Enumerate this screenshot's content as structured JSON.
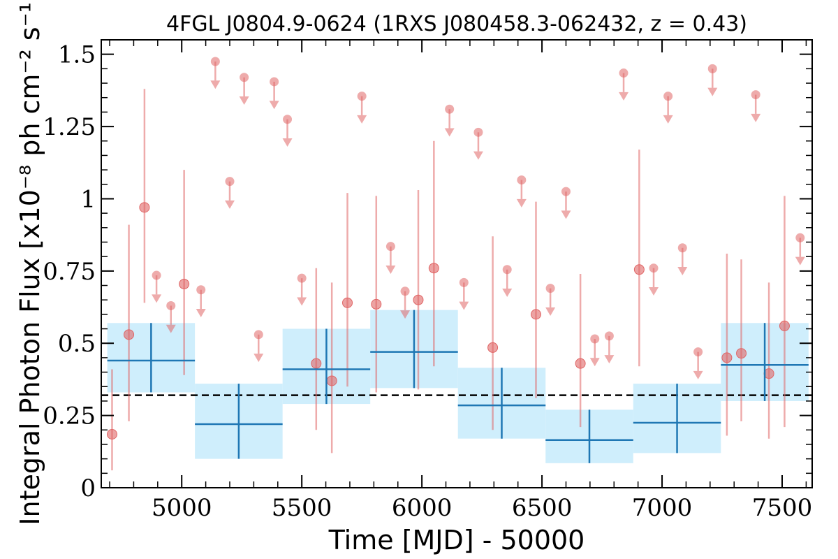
{
  "chart_data": {
    "type": "scatter",
    "title": "4FGL J0804.9-0624 (1RXS J080458.3-062432, z = 0.43)",
    "xlabel": "Time [MJD] - 50000",
    "ylabel": "Integral Photon Flux [x10⁻⁸ ph cm⁻² s⁻¹]",
    "xlim": [
      4665,
      7625
    ],
    "ylim": [
      0,
      1.55
    ],
    "xticks": [
      5000,
      5500,
      6000,
      6500,
      7000,
      7500
    ],
    "xtick_labels": [
      "5000",
      "5500",
      "6000",
      "6500",
      "7000",
      "7500"
    ],
    "yticks": [
      0,
      0.25,
      0.5,
      0.75,
      1,
      1.25,
      1.5
    ],
    "ytick_labels": [
      "0",
      "0.25",
      "0.5",
      "0.75",
      "1",
      "1.25",
      "1.5"
    ],
    "grid": false,
    "average_flux": 0.32,
    "colors": {
      "detections": "#e06666",
      "upper_limits": "#e06666",
      "yearly_bins": "#1f77b4",
      "yearly_band": "#cfeefc",
      "average_line": "#000000"
    },
    "detections": [
      {
        "x": 4710,
        "y": 0.185,
        "lo": 0.06,
        "hi": 0.41
      },
      {
        "x": 4780,
        "y": 0.53,
        "lo": 0.23,
        "hi": 0.91
      },
      {
        "x": 4845,
        "y": 0.97,
        "lo": 0.64,
        "hi": 1.38
      },
      {
        "x": 5010,
        "y": 0.705,
        "lo": 0.39,
        "hi": 1.1
      },
      {
        "x": 5560,
        "y": 0.43,
        "lo": 0.2,
        "hi": 0.76
      },
      {
        "x": 5625,
        "y": 0.37,
        "lo": 0.12,
        "hi": 0.71
      },
      {
        "x": 5690,
        "y": 0.64,
        "lo": 0.35,
        "hi": 1.02
      },
      {
        "x": 5810,
        "y": 0.635,
        "lo": 0.33,
        "hi": 1.01
      },
      {
        "x": 5985,
        "y": 0.65,
        "lo": 0.34,
        "hi": 1.03
      },
      {
        "x": 6050,
        "y": 0.76,
        "lo": 0.42,
        "hi": 1.2
      },
      {
        "x": 6295,
        "y": 0.485,
        "lo": 0.2,
        "hi": 0.87
      },
      {
        "x": 6475,
        "y": 0.6,
        "lo": 0.31,
        "hi": 0.99
      },
      {
        "x": 6660,
        "y": 0.43,
        "lo": 0.21,
        "hi": 0.74
      },
      {
        "x": 6905,
        "y": 0.755,
        "lo": 0.42,
        "hi": 1.17
      },
      {
        "x": 7270,
        "y": 0.45,
        "lo": 0.18,
        "hi": 0.81
      },
      {
        "x": 7330,
        "y": 0.465,
        "lo": 0.23,
        "hi": 0.79
      },
      {
        "x": 7445,
        "y": 0.395,
        "lo": 0.17,
        "hi": 0.71
      },
      {
        "x": 7510,
        "y": 0.56,
        "lo": 0.21,
        "hi": 1.01
      }
    ],
    "upper_limits": [
      {
        "x": 4895,
        "y": 0.735
      },
      {
        "x": 4955,
        "y": 0.63
      },
      {
        "x": 5080,
        "y": 0.685
      },
      {
        "x": 5140,
        "y": 1.475
      },
      {
        "x": 5200,
        "y": 1.06
      },
      {
        "x": 5260,
        "y": 1.42
      },
      {
        "x": 5320,
        "y": 0.53
      },
      {
        "x": 5385,
        "y": 1.405
      },
      {
        "x": 5440,
        "y": 1.275
      },
      {
        "x": 5500,
        "y": 0.725
      },
      {
        "x": 5750,
        "y": 1.355
      },
      {
        "x": 5870,
        "y": 0.835
      },
      {
        "x": 5930,
        "y": 0.68
      },
      {
        "x": 6115,
        "y": 1.31
      },
      {
        "x": 6175,
        "y": 0.71
      },
      {
        "x": 6235,
        "y": 1.23
      },
      {
        "x": 6355,
        "y": 0.755
      },
      {
        "x": 6415,
        "y": 1.065
      },
      {
        "x": 6535,
        "y": 0.69
      },
      {
        "x": 6600,
        "y": 1.025
      },
      {
        "x": 6720,
        "y": 0.515
      },
      {
        "x": 6780,
        "y": 0.525
      },
      {
        "x": 6840,
        "y": 1.435
      },
      {
        "x": 6965,
        "y": 0.76
      },
      {
        "x": 7025,
        "y": 1.355
      },
      {
        "x": 7085,
        "y": 0.83
      },
      {
        "x": 7150,
        "y": 0.47
      },
      {
        "x": 7210,
        "y": 1.45
      },
      {
        "x": 7390,
        "y": 1.36
      },
      {
        "x": 7575,
        "y": 0.865
      }
    ],
    "yearly_bins": [
      {
        "x0": 4690,
        "x1": 5055,
        "y": 0.44,
        "lo": 0.33,
        "hi": 0.57
      },
      {
        "x0": 5055,
        "x1": 5420,
        "y": 0.22,
        "lo": 0.1,
        "hi": 0.36
      },
      {
        "x0": 5420,
        "x1": 5785,
        "y": 0.41,
        "lo": 0.29,
        "hi": 0.55
      },
      {
        "x0": 5785,
        "x1": 6150,
        "y": 0.47,
        "lo": 0.345,
        "hi": 0.615
      },
      {
        "x0": 6150,
        "x1": 6515,
        "y": 0.285,
        "lo": 0.17,
        "hi": 0.415
      },
      {
        "x0": 6515,
        "x1": 6880,
        "y": 0.165,
        "lo": 0.085,
        "hi": 0.27
      },
      {
        "x0": 6880,
        "x1": 7245,
        "y": 0.225,
        "lo": 0.12,
        "hi": 0.36
      },
      {
        "x0": 7245,
        "x1": 7610,
        "y": 0.425,
        "lo": 0.3,
        "hi": 0.57
      }
    ]
  }
}
